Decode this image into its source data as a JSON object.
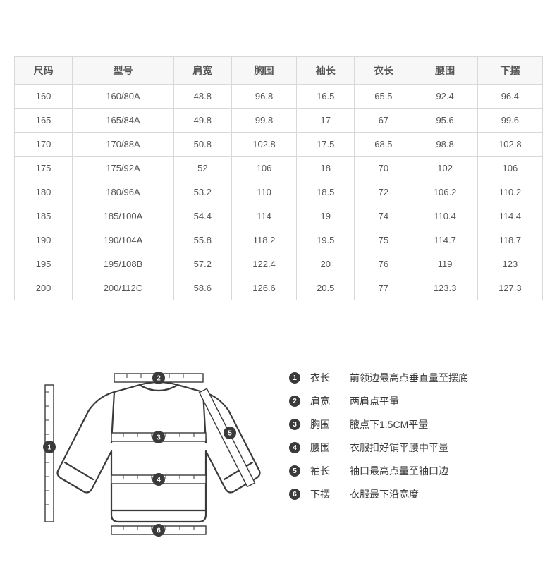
{
  "table": {
    "columns": [
      "尺码",
      "型号",
      "肩宽",
      "胸围",
      "袖长",
      "衣长",
      "腰围",
      "下摆"
    ],
    "rows": [
      [
        "160",
        "160/80A",
        "48.8",
        "96.8",
        "16.5",
        "65.5",
        "92.4",
        "96.4"
      ],
      [
        "165",
        "165/84A",
        "49.8",
        "99.8",
        "17",
        "67",
        "95.6",
        "99.6"
      ],
      [
        "170",
        "170/88A",
        "50.8",
        "102.8",
        "17.5",
        "68.5",
        "98.8",
        "102.8"
      ],
      [
        "175",
        "175/92A",
        "52",
        "106",
        "18",
        "70",
        "102",
        "106"
      ],
      [
        "180",
        "180/96A",
        "53.2",
        "110",
        "18.5",
        "72",
        "106.2",
        "110.2"
      ],
      [
        "185",
        "185/100A",
        "54.4",
        "114",
        "19",
        "74",
        "110.4",
        "114.4"
      ],
      [
        "190",
        "190/104A",
        "55.8",
        "118.2",
        "19.5",
        "75",
        "114.7",
        "118.7"
      ],
      [
        "195",
        "195/108B",
        "57.2",
        "122.4",
        "20",
        "76",
        "119",
        "123"
      ],
      [
        "200",
        "200/112C",
        "58.6",
        "126.6",
        "20.5",
        "77",
        "123.3",
        "127.3"
      ]
    ],
    "header_bg": "#f7f7f7",
    "border_color": "#d8d8d8",
    "text_color": "#555555"
  },
  "legend": {
    "items": [
      {
        "num": "1",
        "term": "衣长",
        "desc": "前领边最高点垂直量至摆底"
      },
      {
        "num": "2",
        "term": "肩宽",
        "desc": "两肩点平量"
      },
      {
        "num": "3",
        "term": "胸围",
        "desc": "腋点下1.5CM平量"
      },
      {
        "num": "4",
        "term": "腰围",
        "desc": "衣服扣好铺平腰中平量"
      },
      {
        "num": "5",
        "term": "袖长",
        "desc": "袖口最高点量至袖口边"
      },
      {
        "num": "6",
        "term": "下摆",
        "desc": "衣服最下沿宽度"
      }
    ]
  },
  "diagram": {
    "outline_color": "#3a3a3a",
    "ruler_fill": "#ffffff",
    "ruler_stroke": "#3a3a3a",
    "badge_fill": "#3a3a3a",
    "badge_text": "#ffffff"
  }
}
